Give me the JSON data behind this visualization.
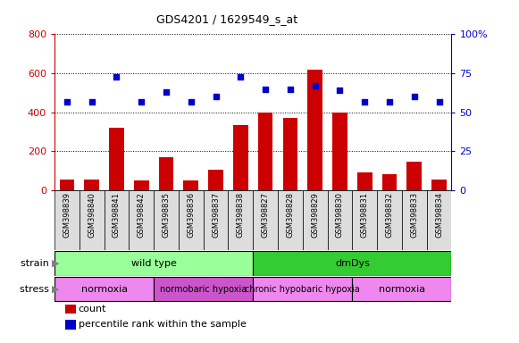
{
  "title": "GDS4201 / 1629549_s_at",
  "samples": [
    "GSM398839",
    "GSM398840",
    "GSM398841",
    "GSM398842",
    "GSM398835",
    "GSM398836",
    "GSM398837",
    "GSM398838",
    "GSM398827",
    "GSM398828",
    "GSM398829",
    "GSM398830",
    "GSM398831",
    "GSM398832",
    "GSM398833",
    "GSM398834"
  ],
  "counts": [
    55,
    55,
    320,
    50,
    170,
    50,
    105,
    335,
    400,
    370,
    620,
    400,
    90,
    85,
    145,
    55
  ],
  "percentile_ranks": [
    57,
    57,
    73,
    57,
    63,
    57,
    60,
    73,
    65,
    65,
    67,
    64,
    57,
    57,
    60,
    57
  ],
  "ylim_left": [
    0,
    800
  ],
  "ylim_right": [
    0,
    100
  ],
  "yticks_left": [
    0,
    200,
    400,
    600,
    800
  ],
  "yticks_right": [
    0,
    25,
    50,
    75,
    100
  ],
  "bar_color": "#cc0000",
  "dot_color": "#0000cc",
  "strain_groups": [
    {
      "label": "wild type",
      "start": 0,
      "end": 8,
      "color": "#99ff99"
    },
    {
      "label": "dmDys",
      "start": 8,
      "end": 16,
      "color": "#33cc33"
    }
  ],
  "stress_groups": [
    {
      "label": "normoxia",
      "start": 0,
      "end": 4,
      "color": "#ee88ee"
    },
    {
      "label": "normobaric hypoxia",
      "start": 4,
      "end": 8,
      "color": "#cc55cc"
    },
    {
      "label": "chronic hypobaric hypoxia",
      "start": 8,
      "end": 12,
      "color": "#ee88ee"
    },
    {
      "label": "normoxia",
      "start": 12,
      "end": 16,
      "color": "#ee88ee"
    }
  ],
  "legend_count_color": "#cc0000",
  "legend_dot_color": "#0000cc",
  "bg_color": "#ffffff",
  "tick_label_color_left": "#cc0000",
  "tick_label_color_right": "#0000cc",
  "xtick_bg_color": "#dddddd"
}
